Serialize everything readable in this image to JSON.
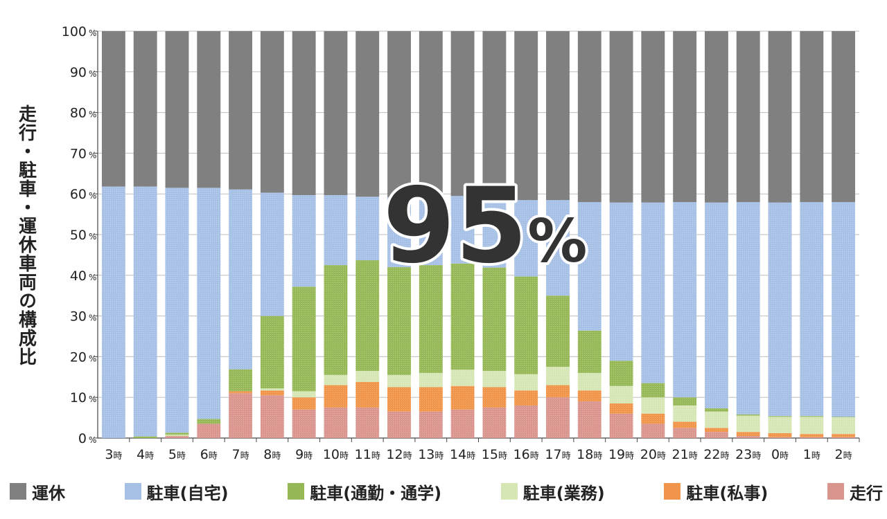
{
  "chart_data": {
    "type": "bar",
    "stacked": true,
    "ylabel": "走行・駐車・運休車両の構成比",
    "ylim": [
      0,
      100
    ],
    "yticks": [
      "0",
      "10",
      "20",
      "30",
      "40",
      "50",
      "60",
      "70",
      "80",
      "90",
      "100"
    ],
    "ytick_unit": "%",
    "categories": [
      "3時",
      "4時",
      "5時",
      "6時",
      "7時",
      "8時",
      "9時",
      "10時",
      "11時",
      "12時",
      "13時",
      "14時",
      "15時",
      "16時",
      "17時",
      "18時",
      "19時",
      "20時",
      "21時",
      "22時",
      "23時",
      "0時",
      "1時",
      "2時"
    ],
    "annotation": {
      "number": "95",
      "unit": "%"
    },
    "grid": true,
    "legend_position": "bottom",
    "series": [
      {
        "name": "走行",
        "color": "#d9958e",
        "values": [
          0,
          0,
          0.5,
          3.5,
          11,
          10.5,
          7,
          7.5,
          7.5,
          6.5,
          6.5,
          7,
          7.5,
          8,
          10,
          9,
          6,
          3.5,
          2.5,
          1.5,
          0.5,
          0.2,
          0.2,
          0.2
        ]
      },
      {
        "name": "駐車(私事)",
        "color": "#f0954a",
        "values": [
          0,
          0,
          0,
          0,
          0.5,
          1.2,
          3,
          5.5,
          6.3,
          6,
          6,
          5.8,
          5,
          3.7,
          3,
          2.7,
          2.5,
          2.5,
          1.5,
          1,
          1,
          1,
          0.8,
          0.8
        ]
      },
      {
        "name": "駐車(業務)",
        "color": "#d6e6b5",
        "values": [
          0,
          0,
          0.3,
          0,
          0,
          0.5,
          1.5,
          2.5,
          2.7,
          3,
          3.5,
          4,
          4,
          4,
          4.5,
          4.3,
          4.3,
          4,
          4,
          4,
          4,
          4,
          4.2,
          4.1
        ]
      },
      {
        "name": "駐車(通勤・通学)",
        "color": "#97b857",
        "values": [
          0,
          0.4,
          0.5,
          1.2,
          5.4,
          17.8,
          25.7,
          27,
          27.2,
          26.5,
          26.5,
          26.1,
          25.4,
          24,
          17.5,
          10.4,
          6.2,
          3.5,
          2,
          0.8,
          0.3,
          0.2,
          0.2,
          0.1
        ]
      },
      {
        "name": "駐車(自宅)",
        "color": "#a7c1e6",
        "values": [
          61.8,
          61.4,
          60.2,
          56.8,
          44.2,
          30.3,
          22.5,
          17.2,
          15.6,
          17.2,
          17,
          16.6,
          17,
          18.8,
          23.5,
          31.6,
          38.9,
          44.4,
          48,
          50.6,
          52.2,
          52.5,
          52.6,
          52.8
        ]
      },
      {
        "name": "運休",
        "color": "#808080",
        "values": [
          38.2,
          38.2,
          38.5,
          38.5,
          38.9,
          39.7,
          40.3,
          40.3,
          40.7,
          40.8,
          40.5,
          40.5,
          41.1,
          41.5,
          41.5,
          42,
          42.1,
          42.1,
          42,
          42.1,
          42,
          42.1,
          42,
          42
        ]
      }
    ],
    "legend_order": [
      "運休",
      "駐車(自宅)",
      "駐車(通勤・通学)",
      "駐車(業務)",
      "駐車(私事)",
      "走行"
    ]
  }
}
